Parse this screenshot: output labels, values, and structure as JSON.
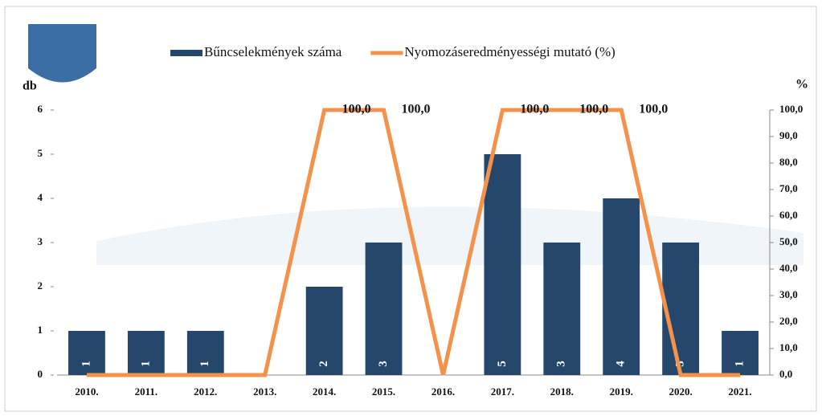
{
  "chart_data": {
    "type": "combo",
    "categories": [
      "2010.",
      "2011.",
      "2012.",
      "2013.",
      "2014.",
      "2015.",
      "2016.",
      "2017.",
      "2018.",
      "2019.",
      "2020.",
      "2021."
    ],
    "series": [
      {
        "name": "Bűncselekmények száma",
        "type": "bar",
        "color": "#24476b",
        "values": [
          1,
          1,
          1,
          null,
          2,
          3,
          null,
          5,
          3,
          4,
          3,
          1
        ]
      },
      {
        "name": "Nyomozáseredményességi mutató (%)",
        "type": "line",
        "axis": "y2",
        "color": "#f4914b",
        "values": [
          0,
          0,
          0,
          0,
          100,
          100,
          0,
          100,
          100,
          100,
          0,
          0
        ],
        "value_labels": [
          null,
          null,
          null,
          null,
          "100,0",
          "100,0",
          null,
          "100,0",
          "100,0",
          "100,0",
          null,
          null
        ]
      }
    ],
    "ylabel": "db",
    "y2label": "%",
    "ylim": [
      0,
      6
    ],
    "yticks": [
      0,
      1,
      2,
      3,
      4,
      5,
      6
    ],
    "y2lim": [
      0,
      100
    ],
    "y2ticks": [
      {
        "value": 0,
        "label": "0,0"
      },
      {
        "value": 10,
        "label": "10,0"
      },
      {
        "value": 20,
        "label": "20,0"
      },
      {
        "value": 30,
        "label": "30,0"
      },
      {
        "value": 40,
        "label": "40,0"
      },
      {
        "value": 50,
        "label": "50,0"
      },
      {
        "value": 60,
        "label": "60,0"
      },
      {
        "value": 70,
        "label": "70,0"
      },
      {
        "value": 80,
        "label": "80,0"
      },
      {
        "value": 90,
        "label": "90,0"
      },
      {
        "value": 100,
        "label": "100,0"
      }
    ],
    "legend": "top"
  }
}
